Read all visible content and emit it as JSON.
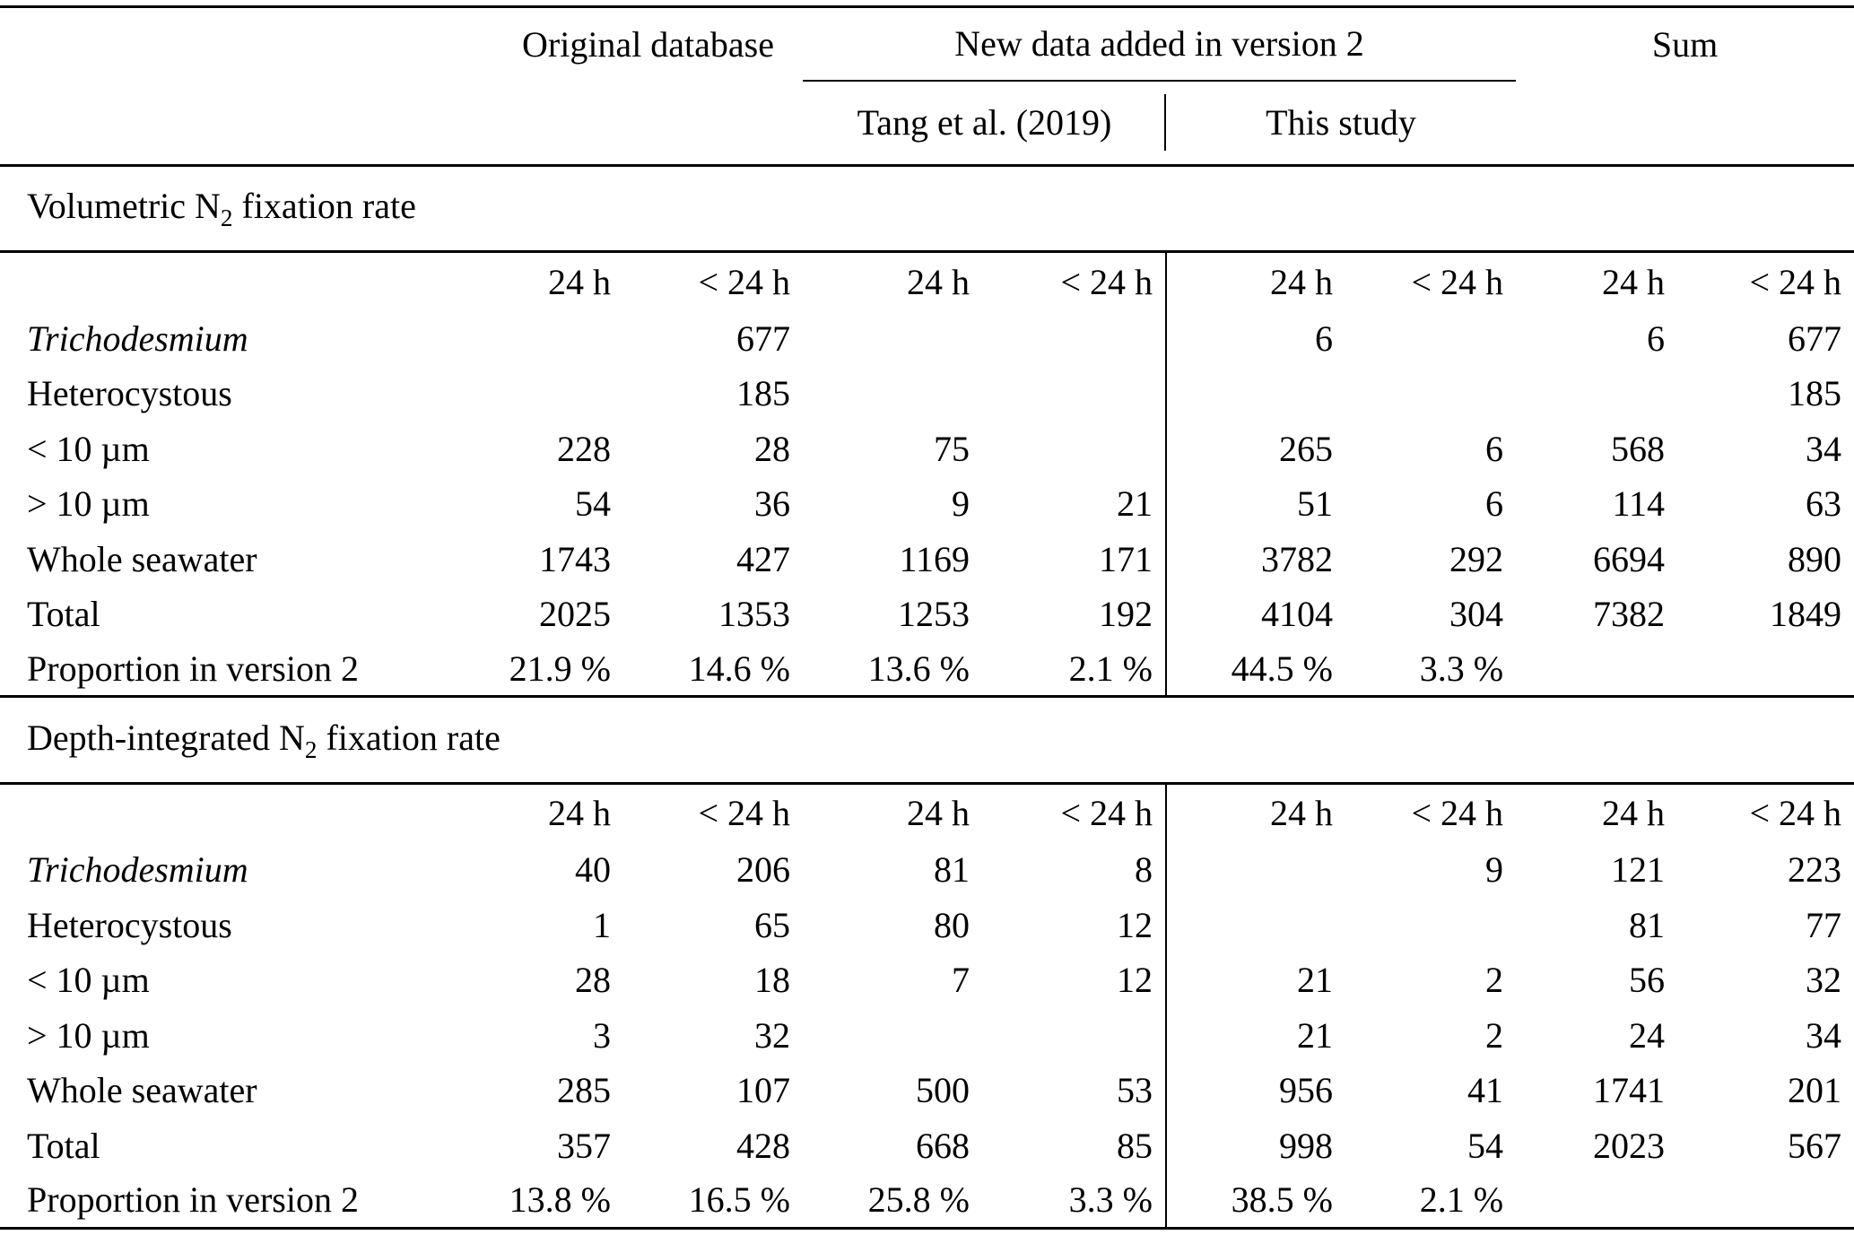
{
  "table": {
    "group_headers": {
      "original": "Original database",
      "new_data": "New data added in version 2",
      "sum": "Sum",
      "tang": "Tang et al. (2019)",
      "this_study": "This study"
    },
    "sections": [
      {
        "title": {
          "pre": "Volumetric N",
          "sub": "2",
          "post": " fixation rate"
        },
        "col_headers": [
          "24 h",
          "< 24 h",
          "24 h",
          "< 24 h",
          "24 h",
          "< 24 h",
          "24 h",
          "< 24 h"
        ],
        "rows": [
          {
            "label": "Trichodesmium",
            "italic": true,
            "values": [
              "",
              "677",
              "",
              "",
              "6",
              "",
              "6",
              "677"
            ]
          },
          {
            "label": "Heterocystous",
            "italic": false,
            "values": [
              "",
              "185",
              "",
              "",
              "",
              "",
              "",
              "185"
            ]
          },
          {
            "label": "< 10 µm",
            "italic": false,
            "values": [
              "228",
              "28",
              "75",
              "",
              "265",
              "6",
              "568",
              "34"
            ]
          },
          {
            "label": "> 10 µm",
            "italic": false,
            "values": [
              "54",
              "36",
              "9",
              "21",
              "51",
              "6",
              "114",
              "63"
            ]
          },
          {
            "label": "Whole seawater",
            "italic": false,
            "values": [
              "1743",
              "427",
              "1169",
              "171",
              "3782",
              "292",
              "6694",
              "890"
            ]
          },
          {
            "label": "Total",
            "italic": false,
            "values": [
              "2025",
              "1353",
              "1253",
              "192",
              "4104",
              "304",
              "7382",
              "1849"
            ]
          },
          {
            "label": "Proportion in version 2",
            "italic": false,
            "values": [
              "21.9 %",
              "14.6 %",
              "13.6 %",
              "2.1 %",
              "44.5 %",
              "3.3 %",
              "",
              ""
            ]
          }
        ]
      },
      {
        "title": {
          "pre": "Depth-integrated N",
          "sub": "2",
          "post": " fixation rate"
        },
        "col_headers": [
          "24 h",
          "< 24 h",
          "24 h",
          "< 24 h",
          "24 h",
          "< 24 h",
          "24 h",
          "< 24 h"
        ],
        "rows": [
          {
            "label": "Trichodesmium",
            "italic": true,
            "values": [
              "40",
              "206",
              "81",
              "8",
              "",
              "9",
              "121",
              "223"
            ]
          },
          {
            "label": "Heterocystous",
            "italic": false,
            "values": [
              "1",
              "65",
              "80",
              "12",
              "",
              "",
              "81",
              "77"
            ]
          },
          {
            "label": "< 10 µm",
            "italic": false,
            "values": [
              "28",
              "18",
              "7",
              "12",
              "21",
              "2",
              "56",
              "32"
            ]
          },
          {
            "label": "> 10 µm",
            "italic": false,
            "values": [
              "3",
              "32",
              "",
              "",
              "21",
              "2",
              "24",
              "34"
            ]
          },
          {
            "label": "Whole seawater",
            "italic": false,
            "values": [
              "285",
              "107",
              "500",
              "53",
              "956",
              "41",
              "1741",
              "201"
            ]
          },
          {
            "label": "Total",
            "italic": false,
            "values": [
              "357",
              "428",
              "668",
              "85",
              "998",
              "54",
              "2023",
              "567"
            ]
          },
          {
            "label": "Proportion in version 2",
            "italic": false,
            "values": [
              "13.8 %",
              "16.5 %",
              "25.8 %",
              "3.3 %",
              "38.5 %",
              "2.1 %",
              "",
              ""
            ]
          }
        ]
      }
    ]
  }
}
